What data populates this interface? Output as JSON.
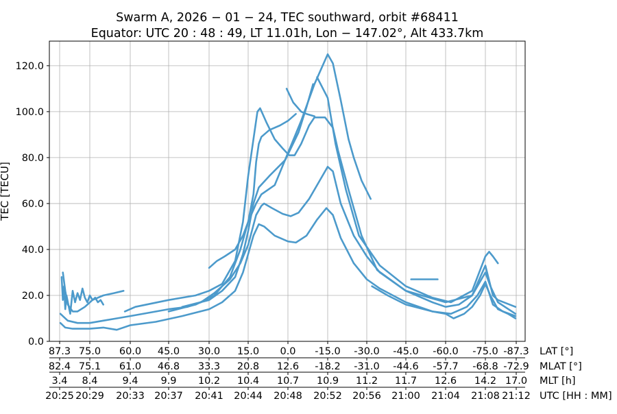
{
  "chart_data": {
    "type": "scatter",
    "title": "Swarm A,  2026 − 01 − 24,  TEC southward,  orbit #68411",
    "subtitle": "Equator:  UTC 20 : 48 : 49,  LT 11.01h,  Lon  − 147.02°,  Alt 433.7km",
    "ylabel": "TEC [TECU]",
    "ylim": [
      0,
      130.7
    ],
    "xlim": [
      91.2,
      -90.7
    ],
    "grid": true,
    "color": "#4c9acb",
    "yticks": [
      "0.0",
      "20.0",
      "40.0",
      "60.0",
      "80.0",
      "100.0",
      "120.0"
    ],
    "ytick_values": [
      0,
      20,
      40,
      60,
      80,
      100,
      120
    ],
    "xtick_lat_values": [
      87.3,
      75,
      60,
      45,
      30,
      15,
      0,
      -15,
      -30,
      -45,
      -60,
      -75,
      -87.3
    ],
    "xaxis_rows": [
      {
        "label": "LAT [°]",
        "ticks": [
          "87.3",
          "75.0",
          "60.0",
          "45.0",
          "30.0",
          "15.0",
          "0.0",
          "-15.0",
          "-30.0",
          "-45.0",
          "-60.0",
          "-75.0",
          "-87.3"
        ]
      },
      {
        "label": "MLAT [°]",
        "ticks": [
          "82.4",
          "75.1",
          "61.0",
          "46.8",
          "33.3",
          "20.8",
          "12.6",
          "-18.2",
          "-31.0",
          "-44.6",
          "-57.7",
          "-68.8",
          "-72.9"
        ]
      },
      {
        "label": "MLT [h]",
        "ticks": [
          "3.4",
          "8.4",
          "9.4",
          "9.9",
          "10.2",
          "10.4",
          "10.7",
          "10.9",
          "11.2",
          "11.7",
          "12.6",
          "14.2",
          "17.0"
        ]
      },
      {
        "label": "UTC [HH : MM]",
        "ticks": [
          "20:25",
          "20:29",
          "20:33",
          "20:37",
          "20:41",
          "20:44",
          "20:48",
          "20:52",
          "20:56",
          "21:00",
          "21:04",
          "21:08",
          "21:12"
        ]
      }
    ],
    "series": [
      {
        "points": [
          [
            87,
            8
          ],
          [
            85,
            6
          ],
          [
            82,
            5.5
          ],
          [
            75,
            5.5
          ],
          [
            70,
            6
          ],
          [
            65,
            5
          ],
          [
            60,
            7
          ],
          [
            50,
            8.5
          ],
          [
            40,
            11
          ],
          [
            30,
            14
          ],
          [
            25,
            17
          ],
          [
            20,
            22
          ],
          [
            17,
            30
          ],
          [
            15,
            38
          ],
          [
            13,
            46
          ],
          [
            11,
            51
          ],
          [
            9,
            50
          ],
          [
            5,
            46
          ],
          [
            0,
            43.5
          ],
          [
            -3,
            43
          ],
          [
            -7,
            46
          ],
          [
            -11,
            53
          ],
          [
            -14.5,
            58
          ],
          [
            -17,
            55
          ],
          [
            -20,
            45
          ],
          [
            -25,
            34
          ],
          [
            -30,
            27
          ],
          [
            -35,
            23
          ],
          [
            -45,
            17
          ],
          [
            -55,
            13
          ],
          [
            -60,
            12
          ],
          [
            -63,
            10
          ],
          [
            -67,
            12
          ],
          [
            -70,
            15
          ],
          [
            -73,
            20
          ],
          [
            -75,
            25
          ],
          [
            -77,
            20
          ],
          [
            -80,
            14
          ],
          [
            -84,
            12
          ],
          [
            -87,
            10
          ]
        ]
      },
      {
        "points": [
          [
            87,
            12
          ],
          [
            84,
            9
          ],
          [
            80,
            8
          ],
          [
            75,
            8
          ],
          [
            70,
            9
          ],
          [
            65,
            10
          ],
          [
            60,
            11
          ],
          [
            45,
            14
          ],
          [
            38,
            15
          ],
          [
            33,
            17
          ],
          [
            28,
            21
          ],
          [
            22,
            27
          ],
          [
            18,
            34
          ],
          [
            15,
            42
          ],
          [
            12,
            55
          ],
          [
            10,
            59
          ],
          [
            9,
            60
          ],
          [
            6,
            58
          ],
          [
            2,
            55.5
          ],
          [
            -1,
            54.5
          ],
          [
            -4,
            56
          ],
          [
            -8,
            62
          ],
          [
            -12,
            70
          ],
          [
            -15,
            76
          ],
          [
            -17,
            74
          ],
          [
            -20,
            60
          ],
          [
            -25,
            46
          ],
          [
            -30,
            37
          ],
          [
            -35,
            30
          ],
          [
            -45,
            22
          ],
          [
            -55,
            17
          ],
          [
            -60,
            15
          ],
          [
            -65,
            16
          ],
          [
            -70,
            20
          ],
          [
            -73,
            26
          ],
          [
            -75,
            30
          ],
          [
            -77,
            24
          ],
          [
            -80,
            17
          ],
          [
            -87,
            12
          ]
        ]
      },
      {
        "points": [
          [
            62,
            13
          ],
          [
            58,
            15
          ],
          [
            45,
            18
          ],
          [
            35,
            20
          ],
          [
            30,
            22
          ],
          [
            25,
            25
          ],
          [
            20,
            35
          ],
          [
            17,
            52
          ],
          [
            15,
            72
          ],
          [
            13,
            88
          ],
          [
            11.5,
            100
          ],
          [
            10.5,
            101.5
          ],
          [
            8,
            95
          ],
          [
            5,
            88
          ],
          [
            2,
            84
          ],
          [
            -0.5,
            81
          ],
          [
            -2.5,
            81
          ],
          [
            -5,
            86
          ],
          [
            -8,
            94
          ],
          [
            -10,
            97.5
          ],
          [
            -14,
            97.5
          ],
          [
            -17,
            93
          ],
          [
            -19,
            83
          ],
          [
            -23,
            66
          ],
          [
            -28,
            46
          ],
          [
            -34,
            31
          ],
          [
            -45,
            22
          ],
          [
            -60,
            17
          ],
          [
            -70,
            20
          ],
          [
            -75,
            33
          ],
          [
            -78,
            20
          ],
          [
            -80,
            18
          ],
          [
            -87,
            15
          ]
        ]
      },
      {
        "points": [
          [
            0.5,
            110
          ],
          [
            -2,
            104
          ],
          [
            -5,
            100
          ],
          [
            -7,
            99
          ],
          [
            -10,
            98
          ]
        ]
      },
      {
        "points": [
          [
            45,
            13
          ],
          [
            35,
            16
          ],
          [
            28,
            20
          ],
          [
            22,
            28
          ],
          [
            18,
            40
          ],
          [
            15,
            52
          ],
          [
            12,
            60
          ],
          [
            10,
            64
          ],
          [
            5,
            68
          ],
          [
            0,
            82
          ],
          [
            -5,
            96
          ],
          [
            -10,
            112
          ],
          [
            -15,
            125
          ],
          [
            -17,
            121
          ],
          [
            -20,
            105
          ],
          [
            -23,
            88
          ],
          [
            -25,
            80
          ],
          [
            -28,
            70
          ],
          [
            -31.5,
            62
          ]
        ]
      },
      {
        "points": [
          [
            40,
            15
          ],
          [
            30,
            18
          ],
          [
            25,
            22
          ],
          [
            20,
            28
          ],
          [
            17,
            38
          ],
          [
            15,
            48
          ],
          [
            13,
            60
          ],
          [
            11,
            67
          ],
          [
            7,
            72
          ],
          [
            1,
            79
          ],
          [
            -4,
            91
          ],
          [
            -7,
            102
          ],
          [
            -9.5,
            112
          ]
        ]
      },
      {
        "points": [
          [
            30,
            32
          ],
          [
            27,
            35
          ],
          [
            24,
            37
          ],
          [
            20,
            40
          ],
          [
            17,
            46
          ],
          [
            15,
            52
          ],
          [
            13,
            64
          ],
          [
            12,
            78
          ],
          [
            11,
            86
          ],
          [
            10,
            89
          ],
          [
            7,
            92
          ],
          [
            3,
            94
          ],
          [
            0,
            96
          ],
          [
            -3,
            99
          ]
        ]
      },
      {
        "points": [
          [
            -11,
            115
          ],
          [
            -15,
            106
          ],
          [
            -18,
            86
          ],
          [
            -22,
            66
          ],
          [
            -27,
            46
          ],
          [
            -35,
            33
          ],
          [
            -45,
            24
          ],
          [
            -55,
            19
          ],
          [
            -62,
            17
          ],
          [
            -70,
            22
          ],
          [
            -75,
            37
          ],
          [
            -76.5,
            39
          ],
          [
            -78,
            37
          ],
          [
            -80,
            34
          ]
        ]
      },
      {
        "points": [
          [
            86,
            30
          ],
          [
            85,
            22
          ],
          [
            84,
            16
          ],
          [
            82,
            13
          ],
          [
            80,
            13
          ],
          [
            77,
            15
          ],
          [
            74,
            18
          ],
          [
            70,
            20
          ],
          [
            66,
            21
          ],
          [
            62.5,
            22
          ]
        ]
      },
      {
        "points": [
          [
            86.5,
            28
          ],
          [
            86,
            18
          ],
          [
            85.5,
            24
          ],
          [
            85,
            14
          ],
          [
            84.5,
            20
          ],
          [
            83,
            12
          ],
          [
            82,
            22
          ],
          [
            81,
            17
          ],
          [
            80,
            21
          ],
          [
            79,
            18
          ],
          [
            78,
            23
          ],
          [
            77,
            19
          ],
          [
            76,
            17
          ],
          [
            75,
            20
          ],
          [
            74,
            18
          ],
          [
            73,
            19
          ],
          [
            72,
            17
          ],
          [
            71,
            18
          ],
          [
            70,
            16
          ]
        ]
      },
      {
        "points": [
          [
            -47,
            27
          ],
          [
            -52,
            27
          ],
          [
            -57,
            27
          ]
        ]
      },
      {
        "points": [
          [
            -32,
            24
          ],
          [
            -38,
            20
          ],
          [
            -45,
            16
          ],
          [
            -55,
            13
          ],
          [
            -62,
            12
          ],
          [
            -68,
            15
          ],
          [
            -72,
            20
          ],
          [
            -75,
            26
          ],
          [
            -78,
            16
          ],
          [
            -82,
            13
          ],
          [
            -87,
            11
          ]
        ]
      }
    ]
  }
}
